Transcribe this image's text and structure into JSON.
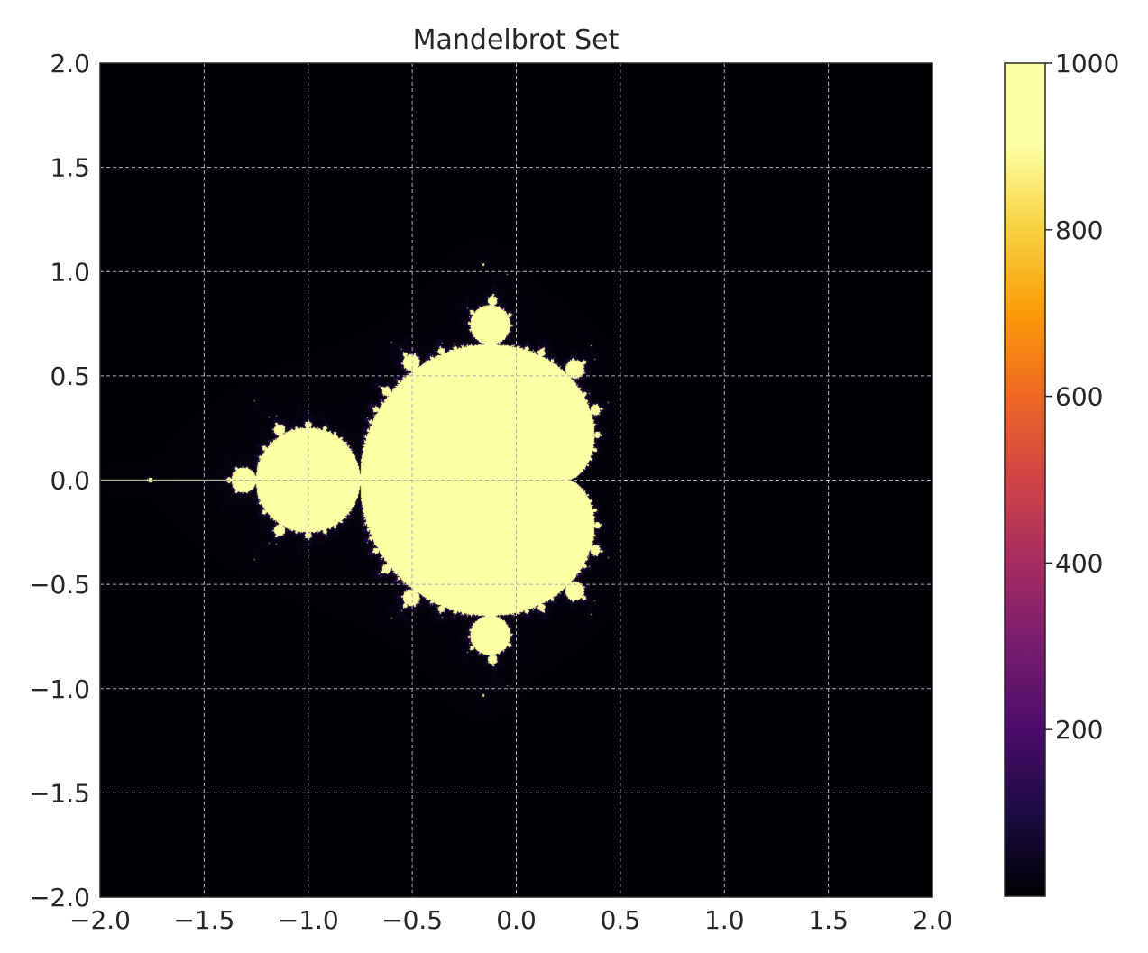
{
  "chart_data": {
    "type": "heatmap",
    "title": "Mandelbrot Set",
    "xlabel": "",
    "ylabel": "",
    "xlim": [
      -2.0,
      2.0
    ],
    "ylim": [
      -2.0,
      2.0
    ],
    "x_ticks": [
      -2.0,
      -1.5,
      -1.0,
      -0.5,
      0.0,
      0.5,
      1.0,
      1.5,
      2.0
    ],
    "y_ticks": [
      -2.0,
      -1.5,
      -1.0,
      -0.5,
      0.0,
      0.5,
      1.0,
      1.5,
      2.0
    ],
    "x_tick_labels": [
      "−2.0",
      "−1.5",
      "−1.0",
      "−0.5",
      "0.0",
      "0.5",
      "1.0",
      "1.5",
      "2.0"
    ],
    "y_tick_labels": [
      "−2.0",
      "−1.5",
      "−1.0",
      "−0.5",
      "0.0",
      "0.5",
      "1.0",
      "1.5",
      "2.0"
    ],
    "grid": true,
    "colormap": "inferno",
    "max_iterations": 1000,
    "colorbar": {
      "min": 0,
      "max": 1000,
      "ticks": [
        200,
        400,
        600,
        800,
        1000
      ],
      "tick_labels": [
        "200",
        "400",
        "600",
        "800",
        "1000"
      ]
    },
    "colors": {
      "background": "#000004",
      "set_interior": "#fcffa4",
      "grid": "#b0b0b0"
    }
  }
}
